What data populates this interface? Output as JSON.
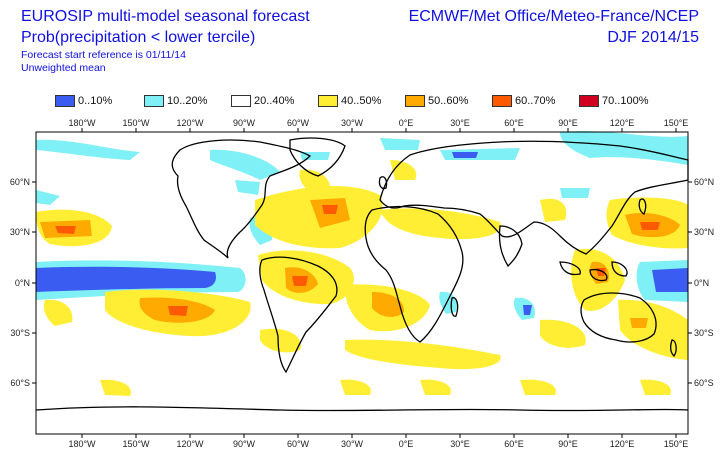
{
  "header": {
    "title": "EUROSIP multi-model seasonal forecast",
    "subtitle": "Prob(precipitation < lower tercile)",
    "reference": "Forecast start reference is 01/11/14",
    "mean": "Unweighted mean",
    "centres": "ECMWF/Met Office/Meteo-France/NCEP",
    "season": "DJF 2014/15"
  },
  "legend": [
    {
      "label": "0..10%",
      "color": "#3a5cf0"
    },
    {
      "label": "10..20%",
      "color": "#7ff0f5"
    },
    {
      "label": "20..40%",
      "color": "#ffffff"
    },
    {
      "label": "40..50%",
      "color": "#ffee33"
    },
    {
      "label": "50..60%",
      "color": "#ffaa00"
    },
    {
      "label": "60..70%",
      "color": "#ff5a00"
    },
    {
      "label": "70..100%",
      "color": "#d0001e"
    }
  ],
  "axes": {
    "lon_labels": [
      "180°W",
      "150°W",
      "120°W",
      "90°W",
      "60°W",
      "30°W",
      "0°E",
      "30°E",
      "60°E",
      "90°E",
      "120°E",
      "150°E"
    ],
    "lat_labels_left": [
      "60°N",
      "30°N",
      "0°N",
      "30°S",
      "60°S"
    ],
    "lat_labels_right": [
      "60°N",
      "30°N",
      "0°N",
      "30°S",
      "60°S"
    ]
  }
}
